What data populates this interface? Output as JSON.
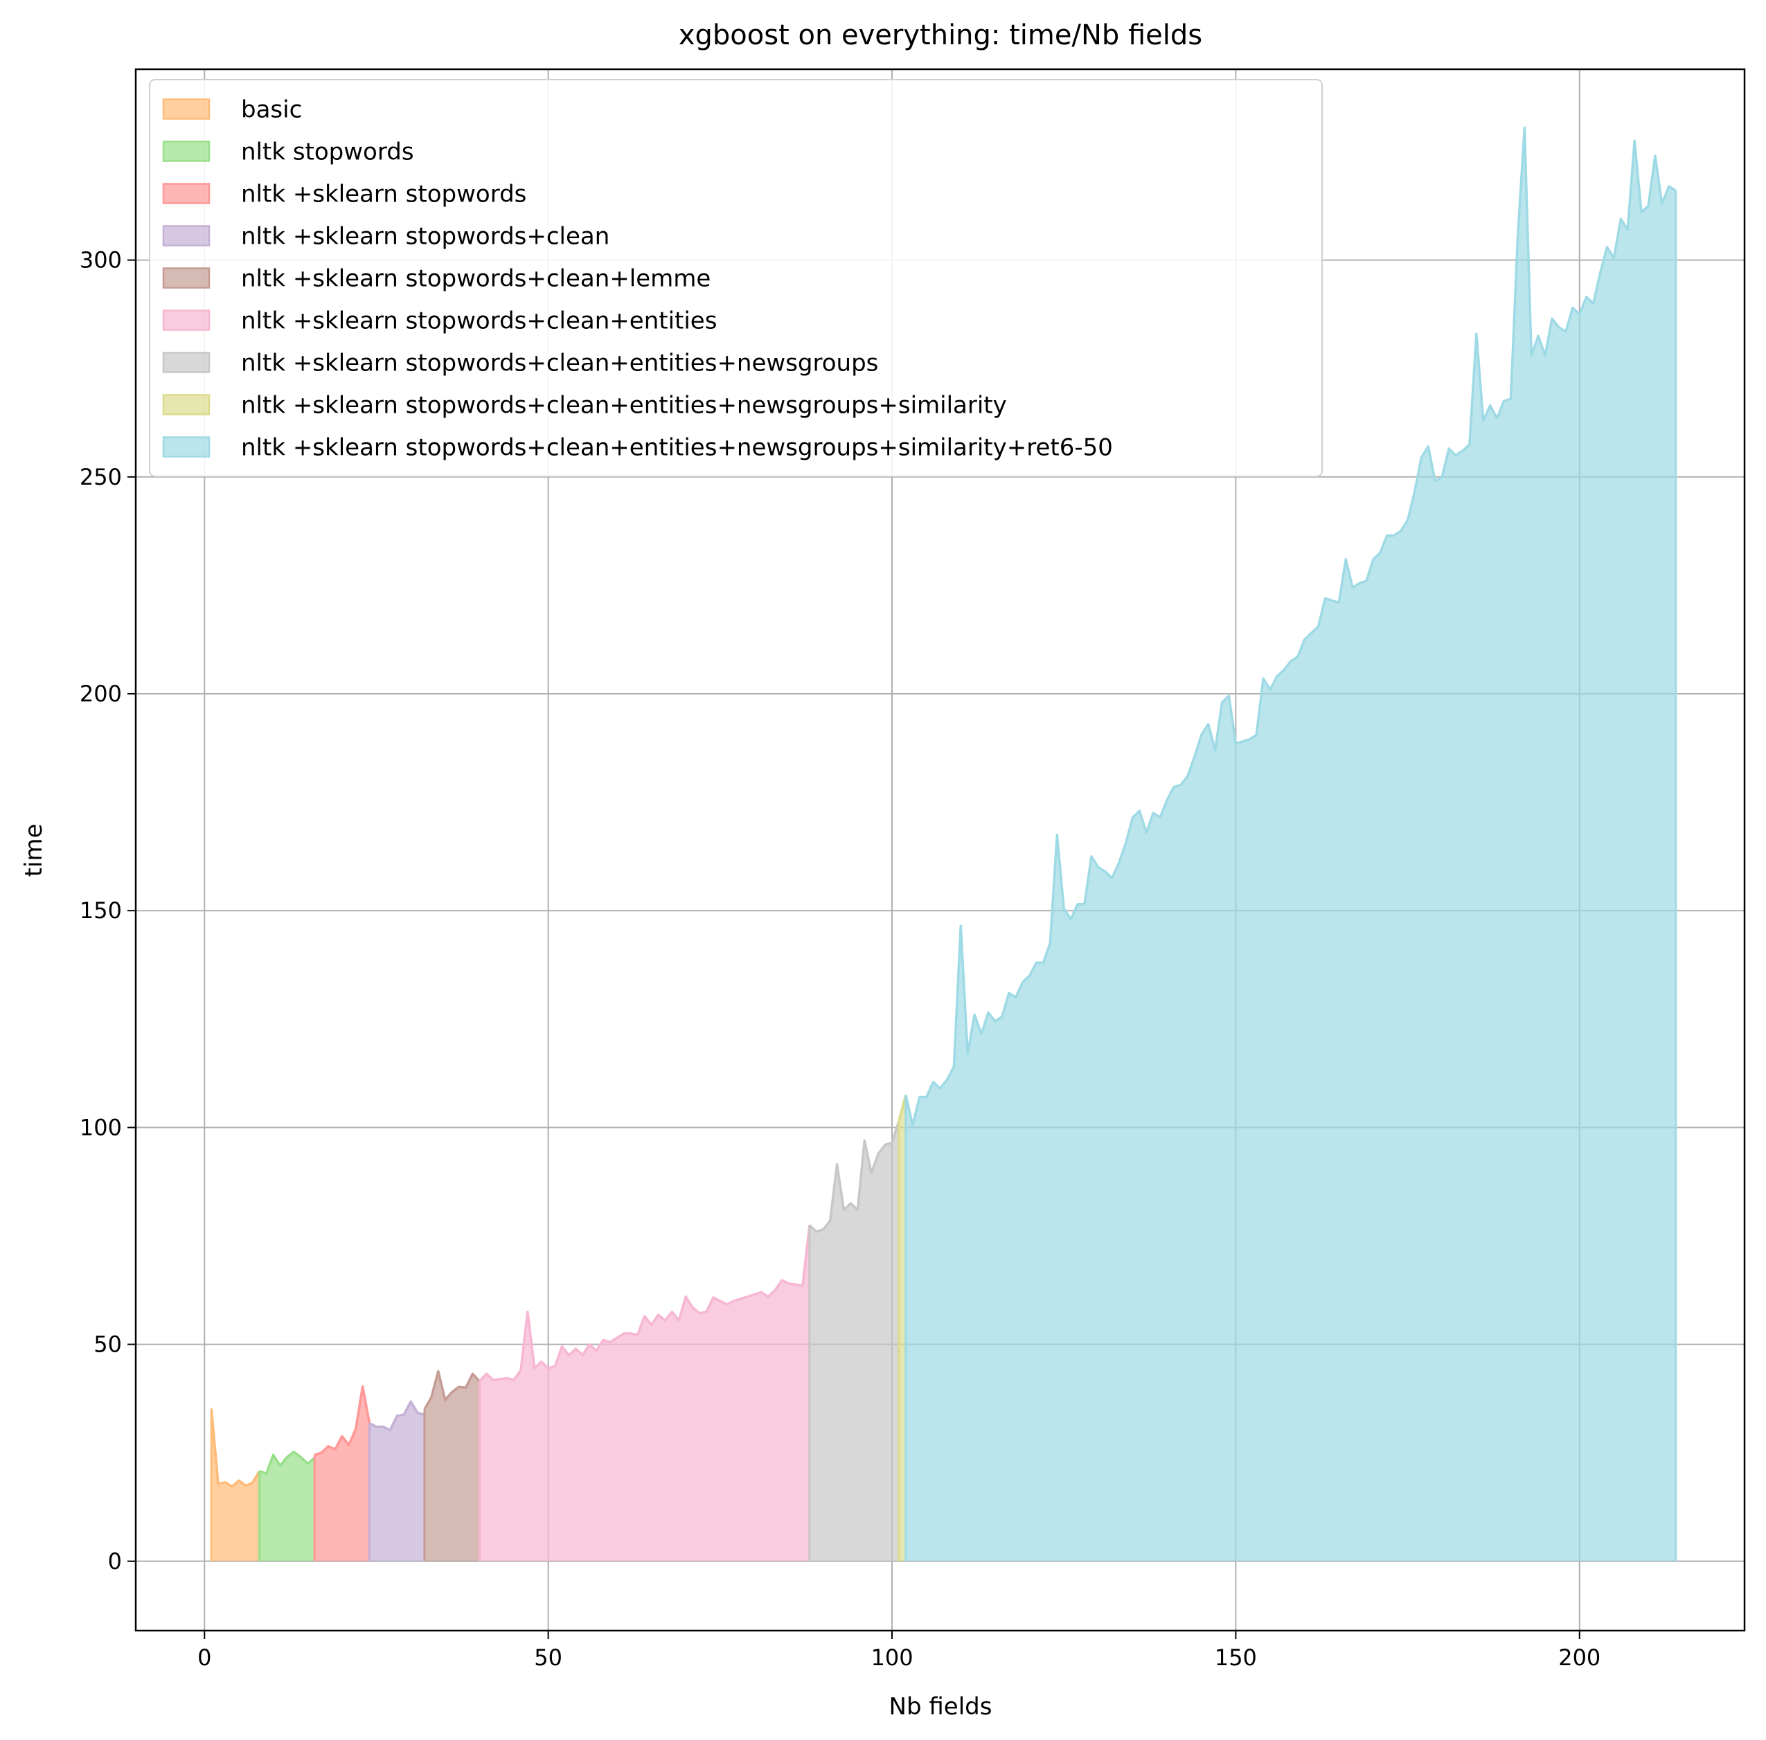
{
  "chart_data": {
    "type": "area",
    "title": "xgboost on everything: time/Nb fields",
    "xlabel": "Nb fields",
    "ylabel": "time",
    "xlim": [
      -10,
      224
    ],
    "ylim": [
      -16,
      344
    ],
    "xticks": [
      0,
      50,
      100,
      150,
      200
    ],
    "yticks": [
      0,
      50,
      100,
      150,
      200,
      250,
      300
    ],
    "grid": true,
    "legend_position": "upper-left",
    "series": [
      {
        "name": "basic",
        "color": "#ffbb78",
        "x": [
          1,
          2,
          3,
          4,
          5,
          6,
          7,
          8
        ],
        "y": [
          35.2,
          17.8,
          18.2,
          17.2,
          18.6,
          17.4,
          18.1,
          20.8
        ]
      },
      {
        "name": "nltk stopwords",
        "color": "#98df8a",
        "x": [
          8,
          9,
          10,
          11,
          12,
          13,
          14,
          15,
          16
        ],
        "y": [
          20.8,
          20.2,
          24.5,
          22.0,
          24.0,
          25.2,
          24.0,
          22.5,
          23.8
        ]
      },
      {
        "name": "nltk +sklearn stopwords",
        "color": "#ff9896",
        "x": [
          16,
          17,
          18,
          19,
          20,
          21,
          22,
          23,
          24
        ],
        "y": [
          24.5,
          25.0,
          26.5,
          25.8,
          28.8,
          26.8,
          30.5,
          40.3,
          31.8
        ]
      },
      {
        "name": "nltk +sklearn stopwords+clean",
        "color": "#c5b0d5",
        "x": [
          24,
          25,
          26,
          27,
          28,
          29,
          30,
          31,
          32
        ],
        "y": [
          31.8,
          31.0,
          31.0,
          30.2,
          33.5,
          33.8,
          36.8,
          34.2,
          33.8
        ]
      },
      {
        "name": "nltk +sklearn stopwords+clean+lemme",
        "color": "#c49c94",
        "x": [
          32,
          33,
          34,
          35,
          36,
          37,
          38,
          39,
          40
        ],
        "y": [
          35.0,
          37.8,
          43.8,
          37.2,
          39.0,
          40.2,
          40.0,
          43.2,
          41.5
        ]
      },
      {
        "name": "nltk +sklearn stopwords+clean+entities",
        "color": "#f7b6d2",
        "x": [
          40,
          41,
          42,
          43,
          44,
          45,
          46,
          47,
          48,
          49,
          50,
          51,
          52,
          53,
          54,
          55,
          56,
          57,
          58,
          59,
          60,
          61,
          62,
          63,
          64,
          65,
          66,
          67,
          68,
          69,
          70,
          71,
          72,
          73,
          74,
          75,
          76,
          77,
          78,
          79,
          80,
          81,
          82,
          83,
          84,
          85,
          86,
          87,
          88
        ],
        "y": [
          41.5,
          43.2,
          41.8,
          42.0,
          42.2,
          41.8,
          44.0,
          57.5,
          44.5,
          46.0,
          44.5,
          45.0,
          49.5,
          47.5,
          49.0,
          47.5,
          50.0,
          48.5,
          51.0,
          50.5,
          51.5,
          52.5,
          52.5,
          52.2,
          56.5,
          54.5,
          56.8,
          55.5,
          57.5,
          55.5,
          61.0,
          58.5,
          57.2,
          57.5,
          60.8,
          60.0,
          59.2,
          60.0,
          60.5,
          61.0,
          61.5,
          62.0,
          61.0,
          62.5,
          64.8,
          64.0,
          63.8,
          63.5,
          77.5
        ]
      },
      {
        "name": "nltk +sklearn stopwords+clean+entities+newsgroups",
        "color": "#c7c7c7",
        "x": [
          88,
          89,
          90,
          91,
          92,
          93,
          94,
          95,
          96,
          97,
          98,
          99,
          100,
          101
        ],
        "y": [
          77.5,
          76.0,
          76.5,
          78.5,
          91.5,
          81.0,
          82.5,
          81.0,
          97.0,
          89.5,
          94.0,
          96.0,
          96.5,
          101.5
        ]
      },
      {
        "name": "nltk +sklearn stopwords+clean+entities+newsgroups+similarity",
        "color": "#dbdb8d",
        "x": [
          101,
          102
        ],
        "y": [
          101.5,
          107.5
        ]
      },
      {
        "name": "nltk +sklearn stopwords+clean+entities+newsgroups+similarity+ret6-50",
        "color": "#9edae5",
        "x": [
          102,
          103,
          104,
          105,
          106,
          107,
          108,
          109,
          110,
          111,
          112,
          113,
          114,
          115,
          116,
          117,
          118,
          119,
          120,
          121,
          122,
          123,
          124,
          125,
          126,
          127,
          128,
          129,
          130,
          131,
          132,
          133,
          134,
          135,
          136,
          137,
          138,
          139,
          140,
          141,
          142,
          143,
          144,
          145,
          146,
          147,
          148,
          149,
          150,
          151,
          152,
          153,
          154,
          155,
          156,
          157,
          158,
          159,
          160,
          161,
          162,
          163,
          164,
          165,
          166,
          167,
          168,
          169,
          170,
          171,
          172,
          173,
          174,
          175,
          176,
          177,
          178,
          179,
          180,
          181,
          182,
          183,
          184,
          185,
          186,
          187,
          188,
          189,
          190,
          191,
          192,
          193,
          194,
          195,
          196,
          197,
          198,
          199,
          200,
          201,
          202,
          203,
          204,
          205,
          206,
          207,
          208,
          209,
          210,
          211,
          212,
          213,
          214
        ],
        "y": [
          107.5,
          100.5,
          107.0,
          107.0,
          110.5,
          109.0,
          111.0,
          114.0,
          146.5,
          117.0,
          126.0,
          121.5,
          126.5,
          124.5,
          125.5,
          131.0,
          130.0,
          133.5,
          135.0,
          138.0,
          138.0,
          142.5,
          167.5,
          150.5,
          148.0,
          151.5,
          151.5,
          162.5,
          160.0,
          159.0,
          157.5,
          161.0,
          165.5,
          171.5,
          173.0,
          168.0,
          172.5,
          171.5,
          175.5,
          178.5,
          179.0,
          181.0,
          185.5,
          190.5,
          193.0,
          187.0,
          198.0,
          199.5,
          188.5,
          189.0,
          189.5,
          190.5,
          203.5,
          201.0,
          204.0,
          205.5,
          207.5,
          208.5,
          212.5,
          214.0,
          215.5,
          222.0,
          221.5,
          221.0,
          231.0,
          224.5,
          225.5,
          226.0,
          231.0,
          232.5,
          236.5,
          236.5,
          237.5,
          240.0,
          246.5,
          254.5,
          257.0,
          249.0,
          250.0,
          256.5,
          255.0,
          256.0,
          257.5,
          283.0,
          263.0,
          266.5,
          263.5,
          267.5,
          268.0,
          305.0,
          330.5,
          278.0,
          282.5,
          278.0,
          286.5,
          284.5,
          283.5,
          289.0,
          287.5,
          291.5,
          290.0,
          297.0,
          303.0,
          300.5,
          309.5,
          307.0,
          327.5,
          311.0,
          312.5,
          324.0,
          313.0,
          317.0,
          316.0
        ]
      }
    ]
  }
}
